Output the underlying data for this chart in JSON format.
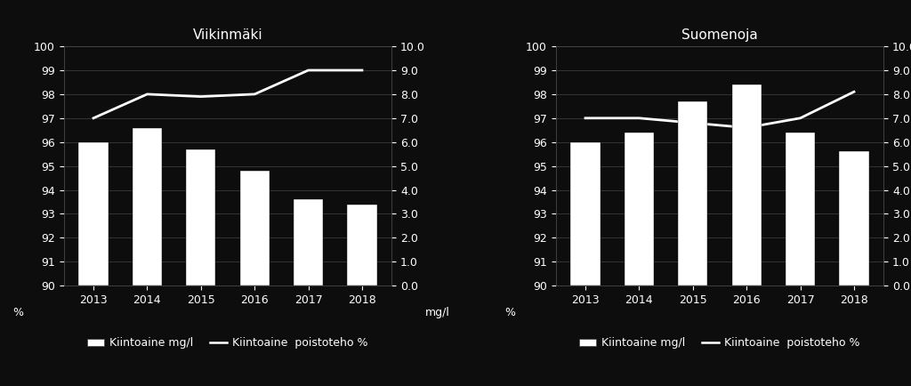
{
  "charts": [
    {
      "title": "Viikinmäki",
      "years": [
        2013,
        2014,
        2015,
        2016,
        2017,
        2018
      ],
      "bar_values": [
        6.0,
        6.6,
        5.7,
        4.8,
        3.6,
        3.4
      ],
      "line_values": [
        97.0,
        98.0,
        97.9,
        98.0,
        99.0,
        99.0
      ]
    },
    {
      "title": "Suomenoja",
      "years": [
        2013,
        2014,
        2015,
        2016,
        2017,
        2018
      ],
      "bar_values": [
        6.0,
        6.4,
        7.7,
        8.4,
        6.4,
        5.6
      ],
      "line_values": [
        97.0,
        97.0,
        96.8,
        96.6,
        97.0,
        98.1
      ]
    }
  ],
  "bar_color": "#ffffff",
  "line_color": "#ffffff",
  "background_color": "#0d0d0d",
  "text_color": "#ffffff",
  "grid_color": "#444444",
  "left_ylim": [
    90,
    100
  ],
  "left_yticks": [
    90,
    91,
    92,
    93,
    94,
    95,
    96,
    97,
    98,
    99,
    100
  ],
  "right_ylim": [
    0.0,
    10.0
  ],
  "right_yticks": [
    0.0,
    1.0,
    2.0,
    3.0,
    4.0,
    5.0,
    6.0,
    7.0,
    8.0,
    9.0,
    10.0
  ],
  "xlabel_left": "%",
  "xlabel_right": "mg/l",
  "legend_bar_label": "Kiintoaine mg/l",
  "legend_line_label": "Kiintoaine  poistoteho %",
  "title_fontsize": 11,
  "tick_fontsize": 9,
  "legend_fontsize": 9
}
